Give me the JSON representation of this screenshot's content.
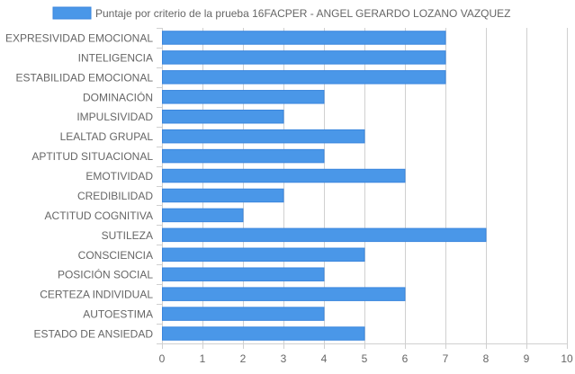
{
  "chart_data": {
    "type": "bar",
    "orientation": "horizontal",
    "legend_position": "top-center",
    "grid": true,
    "xlim": [
      0,
      10
    ],
    "x_ticks": [
      "0",
      "1",
      "2",
      "3",
      "4",
      "5",
      "6",
      "7",
      "8",
      "9",
      "10"
    ],
    "categories": [
      "EXPRESIVIDAD EMOCIONAL",
      "INTELIGENCIA",
      "ESTABILIDAD EMOCIONAL",
      "DOMINACIÓN",
      "IMPULSIVIDAD",
      "LEALTAD GRUPAL",
      "APTITUD SITUACIONAL",
      "EMOTIVIDAD",
      "CREDIBILIDAD",
      "ACTITUD COGNITIVA",
      "SUTILEZA",
      "CONSCIENCIA",
      "POSICIÓN SOCIAL",
      "CERTEZA INDIVIDUAL",
      "AUTOESTIMA",
      "ESTADO DE ANSIEDAD"
    ],
    "series": [
      {
        "name": "Puntaje por criterio de la prueba 16FACPER - ANGEL GERARDO LOZANO VAZQUEZ",
        "values": [
          7,
          7,
          7,
          4,
          3,
          5,
          4,
          6,
          3,
          2,
          8,
          5,
          4,
          6,
          4,
          5
        ],
        "color": "#4a97e8",
        "border_color": "#3a86de"
      }
    ],
    "grid_color": "#d0d0d0",
    "axis_text_color": "#666666"
  }
}
